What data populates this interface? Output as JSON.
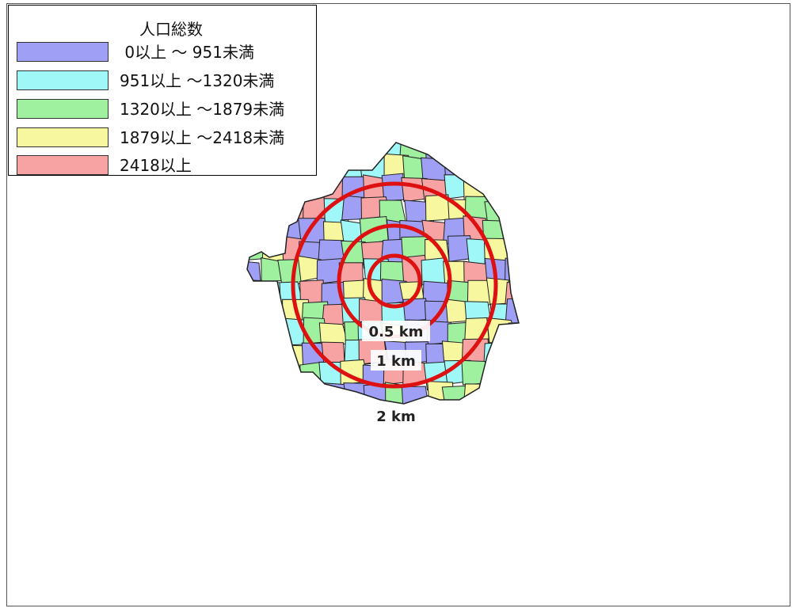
{
  "legend": {
    "title": "人口総数",
    "items": [
      {
        "label": " 0以上 ～ 951未満",
        "color": "#9f9ff5"
      },
      {
        "label": "951以上 ～1320未満",
        "color": "#9ff7f7"
      },
      {
        "label": "1320以上 ～1879未満",
        "color": "#9ff09f"
      },
      {
        "label": "1879以上 ～2418未満",
        "color": "#f7f79f"
      },
      {
        "label": "2418以上",
        "color": "#f7a3a3"
      }
    ]
  },
  "rings": [
    {
      "label": "0.5 km"
    },
    {
      "label": "1 km"
    },
    {
      "label": "2 km"
    }
  ],
  "colors": {
    "ring": "#dd1111",
    "border": "#222222"
  }
}
